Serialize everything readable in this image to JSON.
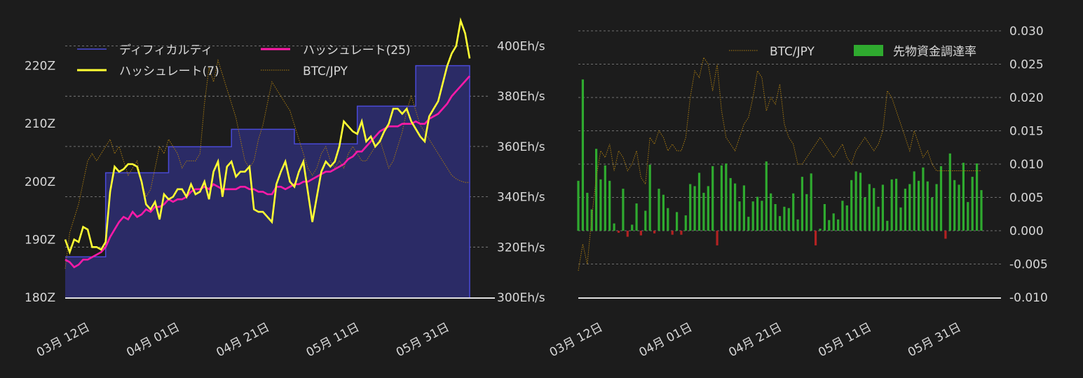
{
  "colors": {
    "background": "#1c1c1c",
    "text": "#d8d8d8",
    "grid": "#8a8a8a",
    "difficulty_line": "#4a4ad8",
    "difficulty_fill": "#2b2b66",
    "hashrate7": "#ffff33",
    "hashrate25": "#ff1aa8",
    "btc_jpy": "#a87a10",
    "funding_pos": "#2faa2f",
    "funding_neg": "#b22222"
  },
  "chart_data": [
    {
      "type": "line",
      "x_ticks": [
        "03月 12日",
        "04月 01日",
        "04月 21日",
        "05月 11日",
        "05月 31日"
      ],
      "x_tick_days": [
        10,
        30,
        50,
        70,
        90
      ],
      "x_range_days": [
        0,
        90
      ],
      "ylim_left": [
        180,
        226
      ],
      "yticks_left": [
        "180Z",
        "190Z",
        "200Z",
        "210Z",
        "220Z"
      ],
      "ylim_right": [
        300,
        406
      ],
      "yticks_right": [
        "300Eh/s",
        "320Eh/s",
        "340Eh/s",
        "360Eh/s",
        "380Eh/s",
        "400Eh/s"
      ],
      "legend": {
        "position": "top",
        "entries": [
          "ディフィカルティ",
          "ハッシュレート(25)",
          "ハッシュレート(7)",
          "BTC/JPY"
        ]
      },
      "difficulty": {
        "name": "ディフィカルティ",
        "axis": "left",
        "steps": [
          {
            "from": 0,
            "to": 9,
            "value": 187
          },
          {
            "from": 9,
            "to": 23,
            "value": 201.5
          },
          {
            "from": 23,
            "to": 37,
            "value": 206
          },
          {
            "from": 37,
            "to": 51,
            "value": 209
          },
          {
            "from": 51,
            "to": 65,
            "value": 206.5
          },
          {
            "from": 65,
            "to": 78,
            "value": 213
          },
          {
            "from": 78,
            "to": 90,
            "value": 220
          }
        ]
      },
      "series": [
        {
          "name": "ハッシュレート(7)",
          "axis": "right",
          "x": [
            0,
            1,
            2,
            3,
            4,
            5,
            6,
            7,
            8,
            9,
            10,
            11,
            12,
            13,
            14,
            15,
            16,
            17,
            18,
            19,
            20,
            21,
            22,
            23,
            24,
            25,
            26,
            27,
            28,
            29,
            30,
            31,
            32,
            33,
            34,
            35,
            36,
            37,
            38,
            39,
            40,
            41,
            42,
            43,
            44,
            45,
            46,
            47,
            48,
            49,
            50,
            51,
            52,
            53,
            54,
            55,
            56,
            57,
            58,
            59,
            60,
            61,
            62,
            63,
            64,
            65,
            66,
            67,
            68,
            69,
            70,
            71,
            72,
            73,
            74,
            75,
            76,
            77,
            78,
            79,
            80,
            81,
            82,
            83,
            84,
            85,
            86,
            87,
            88,
            89,
            90
          ],
          "values": [
            323,
            318,
            323,
            322,
            328,
            327,
            320,
            320,
            319,
            322,
            342,
            352,
            350,
            351,
            353,
            353,
            352,
            346,
            337,
            335,
            338,
            331,
            341,
            339,
            340,
            343,
            343,
            340,
            345,
            341,
            342,
            346,
            339,
            350,
            354,
            340,
            352,
            354,
            348,
            350,
            350,
            352,
            335,
            334,
            334,
            332,
            330,
            345,
            350,
            354,
            346,
            344,
            350,
            354,
            342,
            330,
            340,
            350,
            354,
            352,
            354,
            360,
            370,
            368,
            366,
            365,
            370,
            362,
            364,
            360,
            362,
            366,
            369,
            375,
            375,
            373,
            375,
            370,
            367,
            364,
            362,
            372,
            375,
            378,
            385,
            392,
            397,
            400,
            410,
            405,
            395
          ],
          "color": "#ffff33"
        },
        {
          "name": "ハッシュレート(25)",
          "axis": "right",
          "x": [
            0,
            1,
            2,
            3,
            4,
            5,
            6,
            7,
            8,
            9,
            10,
            11,
            12,
            13,
            14,
            15,
            16,
            17,
            18,
            19,
            20,
            21,
            22,
            23,
            24,
            25,
            26,
            27,
            28,
            29,
            30,
            31,
            32,
            33,
            34,
            35,
            36,
            37,
            38,
            39,
            40,
            41,
            42,
            43,
            44,
            45,
            46,
            47,
            48,
            49,
            50,
            51,
            52,
            53,
            54,
            55,
            56,
            57,
            58,
            59,
            60,
            61,
            62,
            63,
            64,
            65,
            66,
            67,
            68,
            69,
            70,
            71,
            72,
            73,
            74,
            75,
            76,
            77,
            78,
            79,
            80,
            81,
            82,
            83,
            84,
            85,
            86,
            87,
            88,
            89,
            90
          ],
          "values": [
            315,
            314,
            312,
            313,
            315,
            315,
            316,
            317,
            318,
            320,
            324,
            327,
            330,
            332,
            331,
            334,
            332,
            333,
            335,
            334,
            336,
            336,
            337,
            339,
            338,
            339,
            339,
            340,
            342,
            343,
            343,
            344,
            343,
            345,
            344,
            343,
            343,
            343,
            343,
            344,
            344,
            343,
            343,
            342,
            342,
            341,
            341,
            344,
            344,
            343,
            344,
            345,
            345,
            346,
            346,
            347,
            348,
            349,
            350,
            350,
            351,
            352,
            353,
            355,
            356,
            358,
            358,
            360,
            362,
            364,
            366,
            367,
            368,
            368,
            368,
            369,
            369,
            369,
            370,
            369,
            369,
            371,
            372,
            373,
            375,
            377,
            380,
            382,
            384,
            386,
            388
          ],
          "color": "#ff1aa8"
        },
        {
          "name": "BTC/JPY",
          "axis": "price",
          "x": [
            0,
            1,
            2,
            3,
            4,
            5,
            6,
            7,
            8,
            9,
            10,
            11,
            12,
            13,
            14,
            15,
            16,
            17,
            18,
            19,
            20,
            21,
            22,
            23,
            24,
            25,
            26,
            27,
            28,
            29,
            30,
            31,
            32,
            33,
            34,
            35,
            36,
            37,
            38,
            39,
            40,
            41,
            42,
            43,
            44,
            45,
            46,
            47,
            48,
            49,
            50,
            51,
            52,
            53,
            54,
            55,
            56,
            57,
            58,
            59,
            60,
            61,
            62,
            63,
            64,
            65,
            66,
            67,
            68,
            69,
            70,
            71,
            72,
            73,
            74,
            75,
            76,
            77,
            78,
            79,
            80,
            81,
            82,
            83,
            84,
            85,
            86,
            87,
            88,
            89,
            90
          ],
          "values": [
            -0.003,
            0.002,
            0.004,
            0.006,
            0.009,
            0.012,
            0.013,
            0.012,
            0.013,
            0.014,
            0.015,
            0.013,
            0.014,
            0.012,
            0.01,
            0.011,
            0.012,
            0.009,
            0.007,
            0.008,
            0.011,
            0.014,
            0.013,
            0.015,
            0.014,
            0.013,
            0.011,
            0.012,
            0.012,
            0.012,
            0.013,
            0.02,
            0.025,
            0.023,
            0.026,
            0.024,
            0.022,
            0.02,
            0.018,
            0.015,
            0.012,
            0.011,
            0.012,
            0.015,
            0.017,
            0.02,
            0.023,
            0.022,
            0.021,
            0.02,
            0.019,
            0.017,
            0.015,
            0.013,
            0.011,
            0.01,
            0.011,
            0.013,
            0.014,
            0.012,
            0.011,
            0.012,
            0.011,
            0.013,
            0.014,
            0.013,
            0.012,
            0.012,
            0.013,
            0.014,
            0.015,
            0.013,
            0.011,
            0.012,
            0.014,
            0.016,
            0.019,
            0.021,
            0.019,
            0.017,
            0.016,
            0.015,
            0.014,
            0.013,
            0.012,
            0.011,
            0.01,
            0.0095,
            0.0092,
            0.009,
            0.009
          ],
          "color": "#a87a10"
        }
      ]
    },
    {
      "type": "bar",
      "x_ticks": [
        "03月 12日",
        "04月 01日",
        "04月 21日",
        "05月 11日",
        "05月 31日"
      ],
      "x_tick_days": [
        10,
        30,
        50,
        70,
        90
      ],
      "x_range_days": [
        0,
        90
      ],
      "ylim": [
        -0.01,
        0.031
      ],
      "yticks": [
        "0.030",
        "0.025",
        "0.020",
        "0.015",
        "0.010",
        "0.005",
        "0.000",
        "-0.005",
        "-0.010"
      ],
      "ytick_values": [
        0.03,
        0.025,
        0.02,
        0.015,
        0.01,
        0.005,
        0.0,
        -0.005,
        -0.01
      ],
      "legend": {
        "position": "top-right",
        "entries": [
          "BTC/JPY",
          "先物資金調達率"
        ]
      },
      "series": [
        {
          "name": "先物資金調達率",
          "x": [
            0,
            1,
            2,
            3,
            4,
            5,
            6,
            7,
            8,
            9,
            10,
            11,
            12,
            13,
            14,
            15,
            16,
            17,
            18,
            19,
            20,
            21,
            22,
            23,
            24,
            25,
            26,
            27,
            28,
            29,
            30,
            31,
            32,
            33,
            34,
            35,
            36,
            37,
            38,
            39,
            40,
            41,
            42,
            43,
            44,
            45,
            46,
            47,
            48,
            49,
            50,
            51,
            52,
            53,
            54,
            55,
            56,
            57,
            58,
            59,
            60,
            61,
            62,
            63,
            64,
            65,
            66,
            67,
            68,
            69,
            70,
            71,
            72,
            73,
            74,
            75,
            76,
            77,
            78,
            79,
            80,
            81,
            82,
            83,
            84,
            85,
            86,
            87,
            88,
            89,
            90
          ],
          "values": [
            0.0075,
            0.0227,
            0.0057,
            0.0032,
            0.0123,
            0.0077,
            0.0098,
            0.0075,
            0.0011,
            -0.0003,
            0.0063,
            -0.0009,
            0.0009,
            0.0041,
            -0.0007,
            0.003,
            0.0099,
            -0.0004,
            0.0063,
            0.0054,
            0.0034,
            -0.0006,
            0.0028,
            -0.0006,
            0.0023,
            0.007,
            0.0067,
            0.0087,
            0.0057,
            0.0067,
            0.0097,
            -0.0022,
            0.0098,
            0.0101,
            0.0079,
            0.0071,
            0.0044,
            0.0068,
            0.0021,
            0.0044,
            0.0051,
            0.0045,
            0.0104,
            0.0056,
            0.004,
            0.0022,
            0.0036,
            0.0034,
            0.0056,
            0.0017,
            0.0081,
            0.0055,
            0.0086,
            -0.0022,
            0.0003,
            0.004,
            0.0016,
            0.0026,
            0.0017,
            0.0045,
            0.0038,
            0.0076,
            0.0089,
            0.0087,
            0.005,
            0.007,
            0.0064,
            0.0036,
            0.0069,
            0.0015,
            0.0077,
            0.0078,
            0.0035,
            0.0063,
            0.007,
            0.0089,
            0.0075,
            0.0095,
            0.0074,
            0.005,
            0.007,
            0.0097,
            -0.0012,
            0.0116,
            0.0076,
            0.0069,
            0.0102,
            0.0043,
            0.0081,
            0.0101,
            0.0061
          ],
          "color_positive": "#2faa2f",
          "color_negative": "#b22222"
        },
        {
          "name": "BTC/JPY",
          "x": [
            0,
            1,
            2,
            3,
            4,
            5,
            6,
            7,
            8,
            9,
            10,
            11,
            12,
            13,
            14,
            15,
            16,
            17,
            18,
            19,
            20,
            21,
            22,
            23,
            24,
            25,
            26,
            27,
            28,
            29,
            30,
            31,
            32,
            33,
            34,
            35,
            36,
            37,
            38,
            39,
            40,
            41,
            42,
            43,
            44,
            45,
            46,
            47,
            48,
            49,
            50,
            51,
            52,
            53,
            54,
            55,
            56,
            57,
            58,
            59,
            60,
            61,
            62,
            63,
            64,
            65,
            66,
            67,
            68,
            69,
            70,
            71,
            72,
            73,
            74,
            75,
            76,
            77,
            78,
            79,
            80,
            81,
            82,
            83,
            84,
            85,
            86,
            87,
            88,
            89,
            90
          ],
          "values": [
            -0.006,
            -0.002,
            -0.005,
            0.002,
            0.008,
            0.012,
            0.011,
            0.013,
            0.009,
            0.012,
            0.011,
            0.009,
            0.01,
            0.012,
            0.008,
            0.007,
            0.014,
            0.013,
            0.015,
            0.014,
            0.012,
            0.013,
            0.012,
            0.012,
            0.014,
            0.02,
            0.024,
            0.023,
            0.026,
            0.025,
            0.021,
            0.025,
            0.018,
            0.014,
            0.013,
            0.012,
            0.014,
            0.016,
            0.017,
            0.02,
            0.024,
            0.023,
            0.018,
            0.02,
            0.019,
            0.022,
            0.016,
            0.014,
            0.013,
            0.01,
            0.01,
            0.011,
            0.012,
            0.013,
            0.014,
            0.013,
            0.012,
            0.011,
            0.012,
            0.013,
            0.011,
            0.01,
            0.012,
            0.013,
            0.014,
            0.013,
            0.012,
            0.013,
            0.015,
            0.021,
            0.02,
            0.018,
            0.016,
            0.014,
            0.012,
            0.015,
            0.013,
            0.011,
            0.012,
            0.01,
            0.009,
            0.009,
            0.009,
            0.009,
            0.009,
            0.009,
            0.009,
            0.009,
            0.009,
            0.009,
            0.009
          ],
          "color": "#a87a10"
        }
      ]
    }
  ]
}
